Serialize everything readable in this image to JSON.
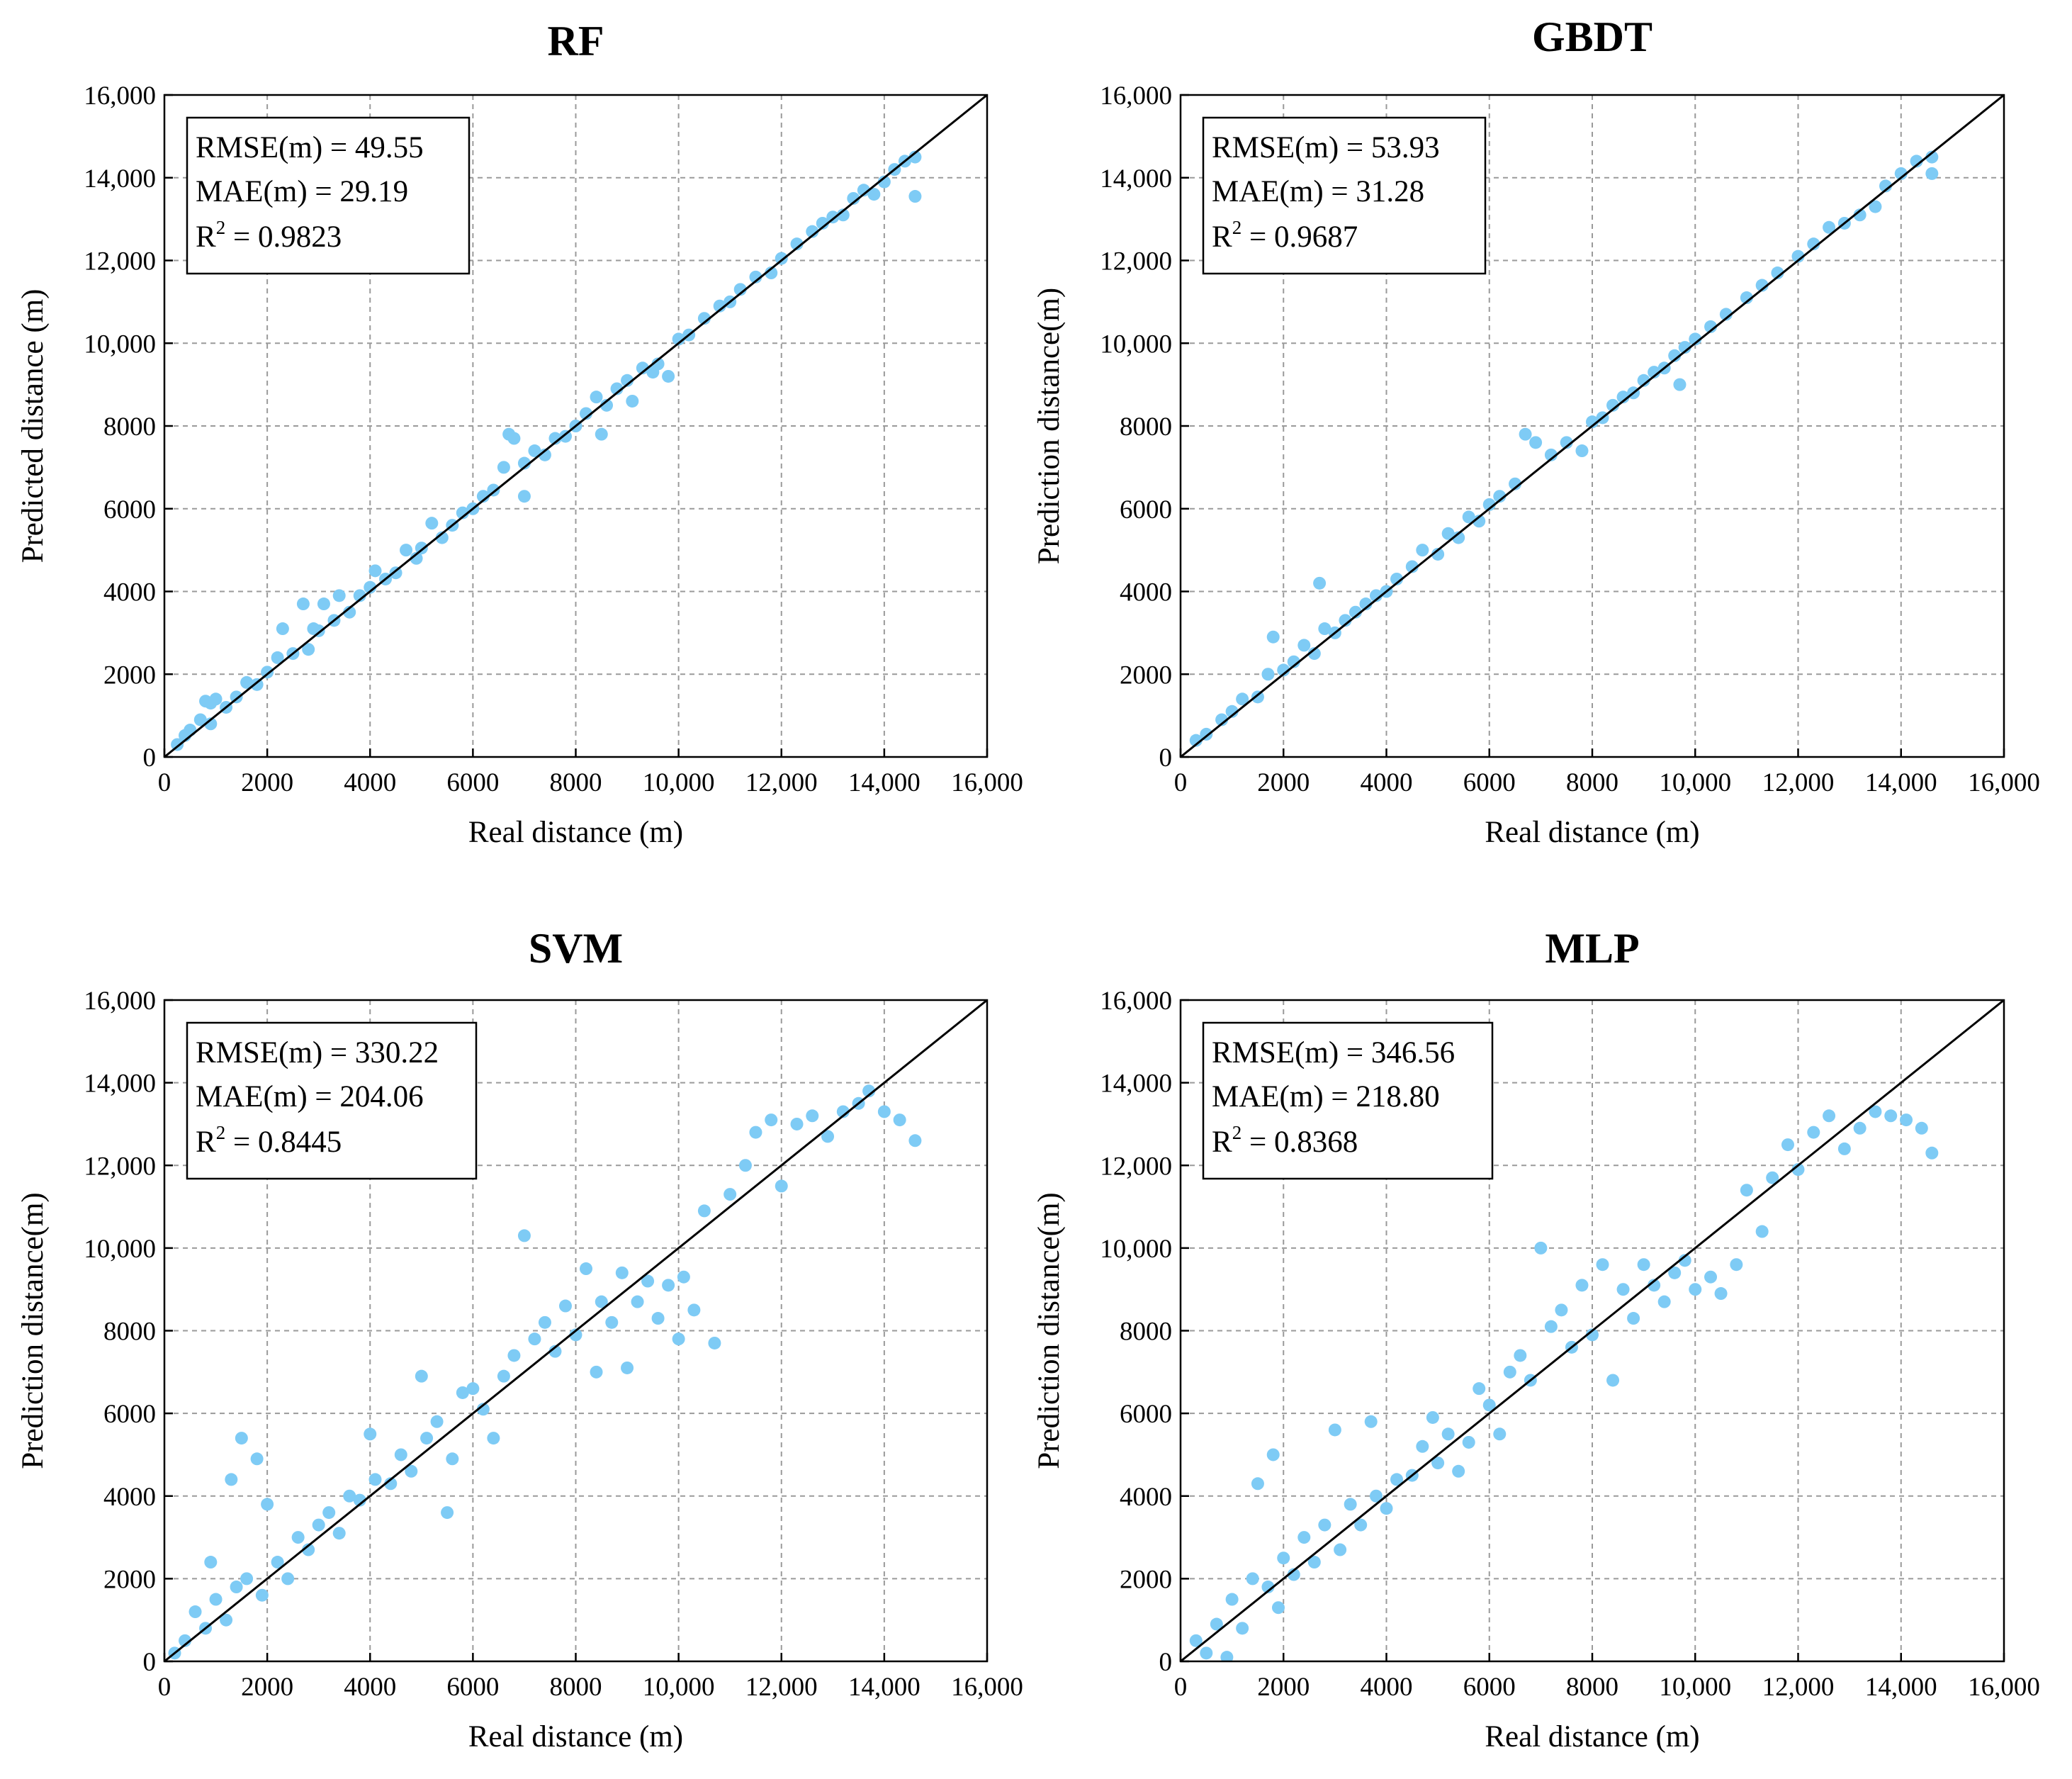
{
  "colors": {
    "points": "#7ecbf5",
    "line": "#000000",
    "grid": "#9a9a9a"
  },
  "chart_data": [
    {
      "type": "scatter",
      "title": "RF",
      "xlabel": "Real distance (m)",
      "ylabel": "Predicted distance (m)",
      "xlim": [
        0,
        16000
      ],
      "ylim": [
        0,
        16000
      ],
      "xticks": [
        "0",
        "2000",
        "4000",
        "6000",
        "8000",
        "10,000",
        "12,000",
        "14,000",
        "16,000"
      ],
      "yticks": [
        "0",
        "2000",
        "4000",
        "6000",
        "8000",
        "10,000",
        "12,000",
        "14,000",
        "16,000"
      ],
      "grid": true,
      "reference_line": "y = x",
      "stats": {
        "rmse_label": "RMSE(m) = 49.55",
        "mae_label": "MAE(m) = 29.19",
        "r2_prefix": "R",
        "r2_sup": "2",
        "r2_value": " = 0.9823"
      },
      "points": [
        [
          250,
          300
        ],
        [
          400,
          520
        ],
        [
          500,
          650
        ],
        [
          700,
          900
        ],
        [
          800,
          1350
        ],
        [
          900,
          1300
        ],
        [
          1000,
          1400
        ],
        [
          900,
          800
        ],
        [
          1200,
          1200
        ],
        [
          1400,
          1450
        ],
        [
          1600,
          1800
        ],
        [
          1800,
          1750
        ],
        [
          2000,
          2050
        ],
        [
          2200,
          2400
        ],
        [
          2300,
          3100
        ],
        [
          2500,
          2500
        ],
        [
          2700,
          3700
        ],
        [
          2800,
          2600
        ],
        [
          2900,
          3100
        ],
        [
          3000,
          3050
        ],
        [
          3100,
          3700
        ],
        [
          3300,
          3300
        ],
        [
          3400,
          3900
        ],
        [
          3600,
          3500
        ],
        [
          3800,
          3900
        ],
        [
          4000,
          4100
        ],
        [
          4100,
          4500
        ],
        [
          4300,
          4300
        ],
        [
          4500,
          4450
        ],
        [
          4700,
          5000
        ],
        [
          4900,
          4800
        ],
        [
          5000,
          5050
        ],
        [
          5200,
          5650
        ],
        [
          5400,
          5300
        ],
        [
          5600,
          5600
        ],
        [
          5800,
          5900
        ],
        [
          6000,
          6000
        ],
        [
          6200,
          6300
        ],
        [
          6400,
          6450
        ],
        [
          6600,
          7000
        ],
        [
          6700,
          7800
        ],
        [
          6800,
          7700
        ],
        [
          7000,
          6300
        ],
        [
          7000,
          7100
        ],
        [
          7200,
          7400
        ],
        [
          7400,
          7300
        ],
        [
          7600,
          7700
        ],
        [
          7800,
          7750
        ],
        [
          8000,
          8000
        ],
        [
          8200,
          8300
        ],
        [
          8400,
          8700
        ],
        [
          8500,
          7800
        ],
        [
          8600,
          8500
        ],
        [
          8800,
          8900
        ],
        [
          9000,
          9100
        ],
        [
          9100,
          8600
        ],
        [
          9300,
          9400
        ],
        [
          9500,
          9300
        ],
        [
          9600,
          9500
        ],
        [
          9800,
          9200
        ],
        [
          10000,
          10100
        ],
        [
          10200,
          10200
        ],
        [
          10500,
          10600
        ],
        [
          10800,
          10900
        ],
        [
          11000,
          11000
        ],
        [
          11200,
          11300
        ],
        [
          11500,
          11600
        ],
        [
          11800,
          11700
        ],
        [
          12000,
          12050
        ],
        [
          12300,
          12400
        ],
        [
          12600,
          12700
        ],
        [
          12800,
          12900
        ],
        [
          13000,
          13050
        ],
        [
          13200,
          13100
        ],
        [
          13400,
          13500
        ],
        [
          13600,
          13700
        ],
        [
          13800,
          13600
        ],
        [
          14000,
          13900
        ],
        [
          14200,
          14200
        ],
        [
          14400,
          14400
        ],
        [
          14600,
          14500
        ],
        [
          14600,
          13550
        ]
      ]
    },
    {
      "type": "scatter",
      "title": "GBDT",
      "xlabel": "Real distance (m)",
      "ylabel": "Prediction distance(m)",
      "xlim": [
        0,
        16000
      ],
      "ylim": [
        0,
        16000
      ],
      "xticks": [
        "0",
        "2000",
        "4000",
        "6000",
        "8000",
        "10,000",
        "12,000",
        "14,000",
        "16,000"
      ],
      "yticks": [
        "0",
        "2000",
        "4000",
        "6000",
        "8000",
        "10,000",
        "12,000",
        "14,000",
        "16,000"
      ],
      "grid": true,
      "reference_line": "y = x",
      "stats": {
        "rmse_label": "RMSE(m) = 53.93",
        "mae_label": "MAE(m) = 31.28",
        "r2_prefix": "R",
        "r2_sup": "2",
        "r2_value": " = 0.9687"
      },
      "points": [
        [
          300,
          400
        ],
        [
          500,
          550
        ],
        [
          800,
          900
        ],
        [
          1000,
          1100
        ],
        [
          1200,
          1400
        ],
        [
          1500,
          1450
        ],
        [
          1700,
          2000
        ],
        [
          1800,
          2900
        ],
        [
          2000,
          2100
        ],
        [
          2200,
          2300
        ],
        [
          2400,
          2700
        ],
        [
          2600,
          2500
        ],
        [
          2700,
          4200
        ],
        [
          2800,
          3100
        ],
        [
          3000,
          3000
        ],
        [
          3200,
          3300
        ],
        [
          3400,
          3500
        ],
        [
          3600,
          3700
        ],
        [
          3800,
          3900
        ],
        [
          4000,
          4000
        ],
        [
          4200,
          4300
        ],
        [
          4500,
          4600
        ],
        [
          4700,
          5000
        ],
        [
          5000,
          4900
        ],
        [
          5200,
          5400
        ],
        [
          5400,
          5300
        ],
        [
          5600,
          5800
        ],
        [
          5800,
          5700
        ],
        [
          6000,
          6100
        ],
        [
          6200,
          6300
        ],
        [
          6500,
          6600
        ],
        [
          6700,
          7800
        ],
        [
          6900,
          7600
        ],
        [
          7200,
          7300
        ],
        [
          7500,
          7600
        ],
        [
          7800,
          7400
        ],
        [
          8000,
          8100
        ],
        [
          8200,
          8200
        ],
        [
          8400,
          8500
        ],
        [
          8600,
          8700
        ],
        [
          8800,
          8800
        ],
        [
          9000,
          9100
        ],
        [
          9200,
          9300
        ],
        [
          9400,
          9400
        ],
        [
          9600,
          9700
        ],
        [
          9700,
          9000
        ],
        [
          9800,
          9900
        ],
        [
          10000,
          10100
        ],
        [
          10300,
          10400
        ],
        [
          10600,
          10700
        ],
        [
          11000,
          11100
        ],
        [
          11300,
          11400
        ],
        [
          11600,
          11700
        ],
        [
          12000,
          12100
        ],
        [
          12300,
          12400
        ],
        [
          12600,
          12800
        ],
        [
          12900,
          12900
        ],
        [
          13200,
          13100
        ],
        [
          13500,
          13300
        ],
        [
          13700,
          13800
        ],
        [
          14000,
          14100
        ],
        [
          14300,
          14400
        ],
        [
          14600,
          14500
        ],
        [
          14600,
          14100
        ]
      ]
    },
    {
      "type": "scatter",
      "title": "SVM",
      "xlabel": "Real distance (m)",
      "ylabel": "Prediction distance(m)",
      "xlim": [
        0,
        16000
      ],
      "ylim": [
        0,
        16000
      ],
      "xticks": [
        "0",
        "2000",
        "4000",
        "6000",
        "8000",
        "10,000",
        "12,000",
        "14,000",
        "16,000"
      ],
      "yticks": [
        "0",
        "2000",
        "4000",
        "6000",
        "8000",
        "10,000",
        "12,000",
        "14,000",
        "16,000"
      ],
      "grid": true,
      "reference_line": "y = x",
      "stats": {
        "rmse_label": "RMSE(m) = 330.22",
        "mae_label": "MAE(m) = 204.06",
        "r2_prefix": "R",
        "r2_sup": "2",
        "r2_value": " = 0.8445"
      },
      "points": [
        [
          200,
          200
        ],
        [
          400,
          500
        ],
        [
          600,
          1200
        ],
        [
          800,
          800
        ],
        [
          900,
          2400
        ],
        [
          1000,
          1500
        ],
        [
          1200,
          1000
        ],
        [
          1300,
          4400
        ],
        [
          1400,
          1800
        ],
        [
          1500,
          5400
        ],
        [
          1600,
          2000
        ],
        [
          1800,
          4900
        ],
        [
          1900,
          1600
        ],
        [
          2000,
          3800
        ],
        [
          2200,
          2400
        ],
        [
          2400,
          2000
        ],
        [
          2600,
          3000
        ],
        [
          2800,
          2700
        ],
        [
          3000,
          3300
        ],
        [
          3200,
          3600
        ],
        [
          3400,
          3100
        ],
        [
          3600,
          4000
        ],
        [
          3800,
          3900
        ],
        [
          4000,
          5500
        ],
        [
          4100,
          4400
        ],
        [
          4400,
          4300
        ],
        [
          4600,
          5000
        ],
        [
          4800,
          4600
        ],
        [
          5000,
          6900
        ],
        [
          5100,
          5400
        ],
        [
          5300,
          5800
        ],
        [
          5500,
          3600
        ],
        [
          5600,
          4900
        ],
        [
          5800,
          6500
        ],
        [
          6000,
          6600
        ],
        [
          6200,
          6100
        ],
        [
          6400,
          5400
        ],
        [
          6600,
          6900
        ],
        [
          6800,
          7400
        ],
        [
          7000,
          10300
        ],
        [
          7200,
          7800
        ],
        [
          7400,
          8200
        ],
        [
          7600,
          7500
        ],
        [
          7800,
          8600
        ],
        [
          8000,
          7900
        ],
        [
          8200,
          9500
        ],
        [
          8400,
          7000
        ],
        [
          8500,
          8700
        ],
        [
          8700,
          8200
        ],
        [
          8900,
          9400
        ],
        [
          9000,
          7100
        ],
        [
          9200,
          8700
        ],
        [
          9400,
          9200
        ],
        [
          9600,
          8300
        ],
        [
          9800,
          9100
        ],
        [
          10000,
          7800
        ],
        [
          10100,
          9300
        ],
        [
          10300,
          8500
        ],
        [
          10500,
          10900
        ],
        [
          10700,
          7700
        ],
        [
          11000,
          11300
        ],
        [
          11300,
          12000
        ],
        [
          11500,
          12800
        ],
        [
          11800,
          13100
        ],
        [
          12000,
          11500
        ],
        [
          12300,
          13000
        ],
        [
          12600,
          13200
        ],
        [
          12900,
          12700
        ],
        [
          13200,
          13300
        ],
        [
          13500,
          13500
        ],
        [
          13700,
          13800
        ],
        [
          14000,
          13300
        ],
        [
          14300,
          13100
        ],
        [
          14600,
          12600
        ]
      ]
    },
    {
      "type": "scatter",
      "title": "MLP",
      "xlabel": "Real distance (m)",
      "ylabel": "Prediction distance(m)",
      "xlim": [
        0,
        16000
      ],
      "ylim": [
        0,
        16000
      ],
      "xticks": [
        "0",
        "2000",
        "4000",
        "6000",
        "8000",
        "10,000",
        "12,000",
        "14,000",
        "16,000"
      ],
      "yticks": [
        "0",
        "2000",
        "4000",
        "6000",
        "8000",
        "10,000",
        "12,000",
        "14,000",
        "16,000"
      ],
      "grid": true,
      "reference_line": "y = x",
      "stats": {
        "rmse_label": "RMSE(m) = 346.56",
        "mae_label": "MAE(m) = 218.80",
        "r2_prefix": "R",
        "r2_sup": "2",
        "r2_value": " = 0.8368"
      },
      "points": [
        [
          300,
          500
        ],
        [
          500,
          200
        ],
        [
          700,
          900
        ],
        [
          900,
          100
        ],
        [
          1000,
          1500
        ],
        [
          1200,
          800
        ],
        [
          1400,
          2000
        ],
        [
          1500,
          4300
        ],
        [
          1700,
          1800
        ],
        [
          1800,
          5000
        ],
        [
          1900,
          1300
        ],
        [
          2000,
          2500
        ],
        [
          2200,
          2100
        ],
        [
          2400,
          3000
        ],
        [
          2600,
          2400
        ],
        [
          2800,
          3300
        ],
        [
          3000,
          5600
        ],
        [
          3100,
          2700
        ],
        [
          3300,
          3800
        ],
        [
          3500,
          3300
        ],
        [
          3700,
          5800
        ],
        [
          3800,
          4000
        ],
        [
          4000,
          3700
        ],
        [
          4200,
          4400
        ],
        [
          4500,
          4500
        ],
        [
          4700,
          5200
        ],
        [
          4900,
          5900
        ],
        [
          5000,
          4800
        ],
        [
          5200,
          5500
        ],
        [
          5400,
          4600
        ],
        [
          5600,
          5300
        ],
        [
          5800,
          6600
        ],
        [
          6000,
          6200
        ],
        [
          6200,
          5500
        ],
        [
          6400,
          7000
        ],
        [
          6600,
          7400
        ],
        [
          6800,
          6800
        ],
        [
          7000,
          10000
        ],
        [
          7200,
          8100
        ],
        [
          7400,
          8500
        ],
        [
          7600,
          7600
        ],
        [
          7800,
          9100
        ],
        [
          8000,
          7900
        ],
        [
          8200,
          9600
        ],
        [
          8400,
          6800
        ],
        [
          8600,
          9000
        ],
        [
          8800,
          8300
        ],
        [
          9000,
          9600
        ],
        [
          9200,
          9100
        ],
        [
          9400,
          8700
        ],
        [
          9600,
          9400
        ],
        [
          9800,
          9700
        ],
        [
          10000,
          9000
        ],
        [
          10300,
          9300
        ],
        [
          10500,
          8900
        ],
        [
          10800,
          9600
        ],
        [
          11000,
          11400
        ],
        [
          11300,
          10400
        ],
        [
          11500,
          11700
        ],
        [
          11800,
          12500
        ],
        [
          12000,
          11900
        ],
        [
          12300,
          12800
        ],
        [
          12600,
          13200
        ],
        [
          12900,
          12400
        ],
        [
          13200,
          12900
        ],
        [
          13500,
          13300
        ],
        [
          13800,
          13200
        ],
        [
          14100,
          13100
        ],
        [
          14400,
          12900
        ],
        [
          14600,
          12300
        ]
      ]
    }
  ]
}
